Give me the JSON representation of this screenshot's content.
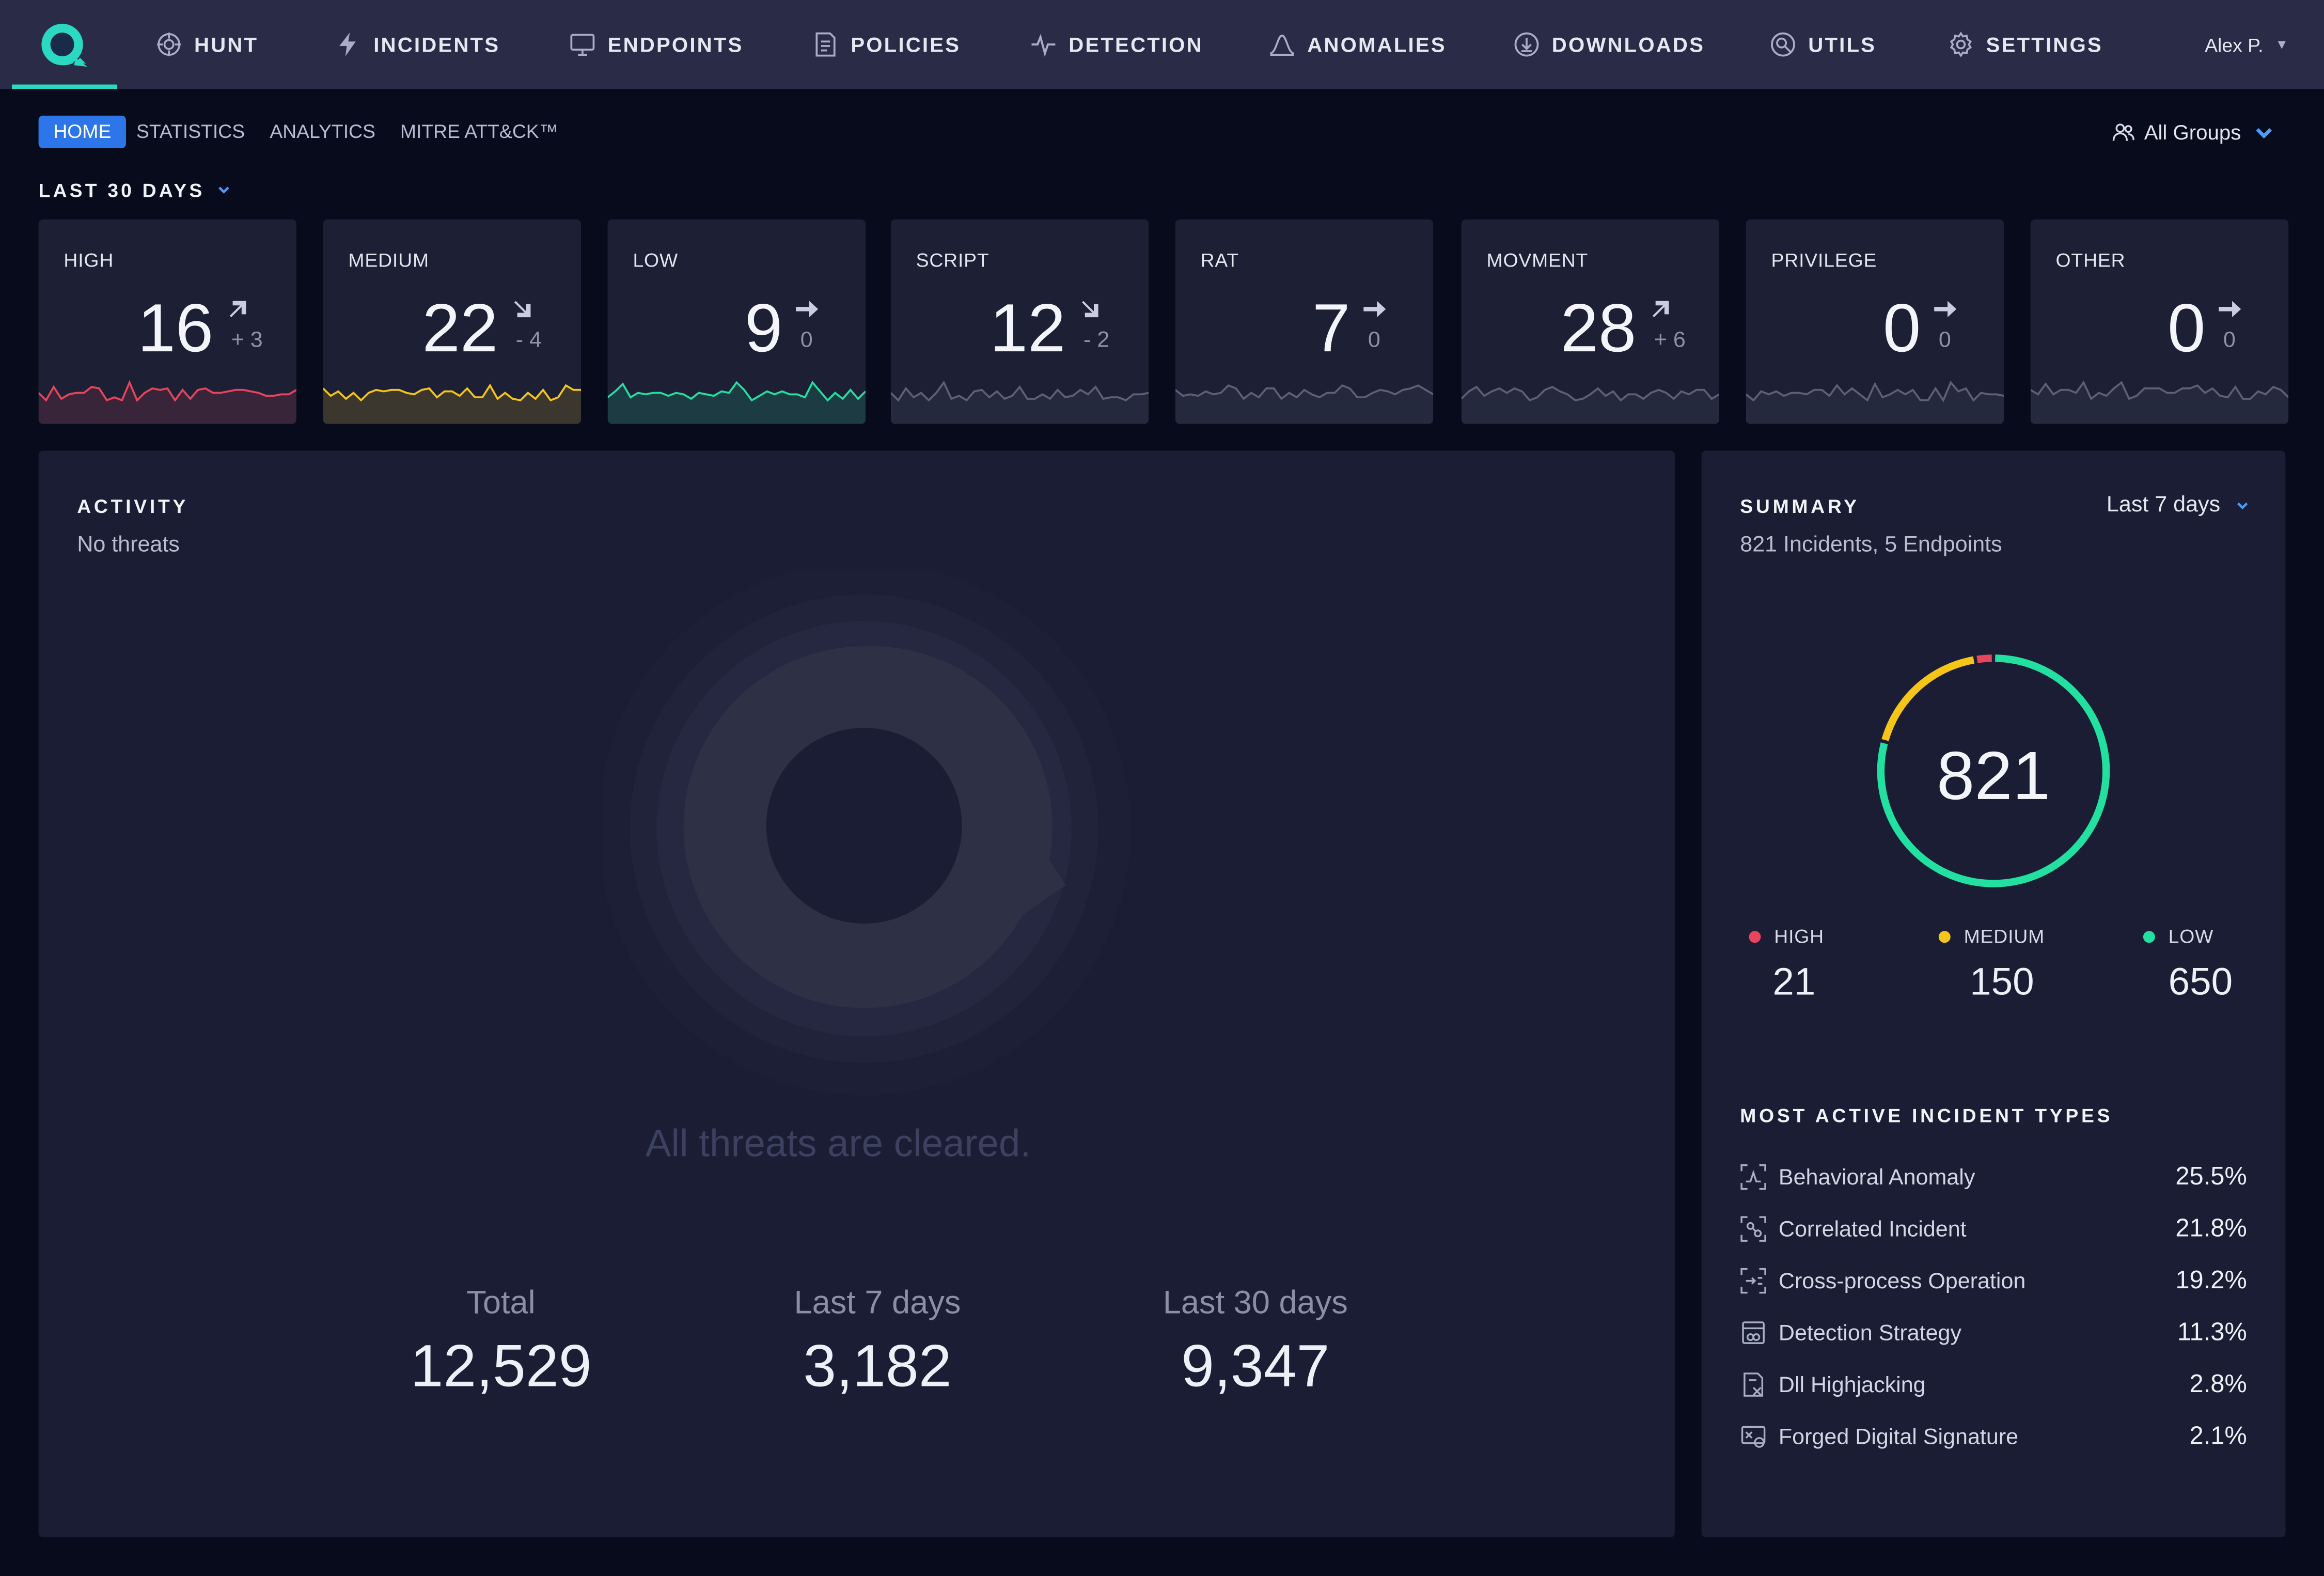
{
  "colors": {
    "accent": "#2d76e9",
    "brand": "#2bd9c2",
    "high": "#e8455c",
    "medium": "#f5c518",
    "low": "#22e0a0",
    "neutral": "#5c6178"
  },
  "nav": {
    "items": [
      {
        "label": "HUNT",
        "icon": "crosshair-globe-icon"
      },
      {
        "label": "INCIDENTS",
        "icon": "lightning-icon"
      },
      {
        "label": "ENDPOINTS",
        "icon": "monitor-icon"
      },
      {
        "label": "POLICIES",
        "icon": "document-icon"
      },
      {
        "label": "DETECTION",
        "icon": "pulse-icon"
      },
      {
        "label": "ANOMALIES",
        "icon": "bell-curve-icon"
      },
      {
        "label": "DOWNLOADS",
        "icon": "download-circle-icon"
      },
      {
        "label": "UTILS",
        "icon": "utils-icon"
      },
      {
        "label": "SETTINGS",
        "icon": "gear-icon"
      }
    ],
    "user": "Alex P."
  },
  "subtabs": {
    "items": [
      {
        "label": "HOME",
        "active": true
      },
      {
        "label": "STATISTICS",
        "active": false
      },
      {
        "label": "ANALYTICS",
        "active": false
      },
      {
        "label": "MITRE ATT&CK™",
        "active": false
      }
    ],
    "groups_label": "All Groups"
  },
  "period": {
    "label": "LAST 30 DAYS"
  },
  "cards": [
    {
      "label": "HIGH",
      "value": "16",
      "delta": "+ 3",
      "trend": "up",
      "color": "#e8455c"
    },
    {
      "label": "MEDIUM",
      "value": "22",
      "delta": "- 4",
      "trend": "down",
      "color": "#f5c518"
    },
    {
      "label": "LOW",
      "value": "9",
      "delta": "0",
      "trend": "flat",
      "color": "#22e0a0"
    },
    {
      "label": "SCRIPT",
      "value": "12",
      "delta": "- 2",
      "trend": "down",
      "color": "#5c6178"
    },
    {
      "label": "RAT",
      "value": "7",
      "delta": "0",
      "trend": "flat",
      "color": "#5c6178"
    },
    {
      "label": "MOVMENT",
      "value": "28",
      "delta": "+ 6",
      "trend": "up",
      "color": "#5c6178"
    },
    {
      "label": "PRIVILEGE",
      "value": "0",
      "delta": "0",
      "trend": "flat",
      "color": "#5c6178"
    },
    {
      "label": "OTHER",
      "value": "0",
      "delta": "0",
      "trend": "flat",
      "color": "#5c6178"
    }
  ],
  "activity": {
    "title": "ACTIVITY",
    "subtitle": "No threats",
    "cleared": "All threats are cleared.",
    "stats": [
      {
        "label": "Total",
        "value": "12,529"
      },
      {
        "label": "Last 7 days",
        "value": "3,182"
      },
      {
        "label": "Last 30 days",
        "value": "9,347"
      }
    ]
  },
  "summary": {
    "title": "SUMMARY",
    "range": "Last 7 days",
    "subtitle": "821 Incidents, 5 Endpoints",
    "total": "821",
    "severities": [
      {
        "label": "HIGH",
        "count": "21",
        "color": "#e8455c"
      },
      {
        "label": "MEDIUM",
        "count": "150",
        "color": "#f5c518"
      },
      {
        "label": "LOW",
        "count": "650",
        "color": "#22e0a0"
      }
    ],
    "types_title": "MOST ACTIVE INCIDENT TYPES",
    "types": [
      {
        "name": "Behavioral Anomaly",
        "pct": "25.5%",
        "icon": "behavioral-anomaly-icon"
      },
      {
        "name": "Correlated Incident",
        "pct": "21.8%",
        "icon": "correlated-incident-icon"
      },
      {
        "name": "Cross-process Operation",
        "pct": "19.2%",
        "icon": "cross-process-icon"
      },
      {
        "name": "Detection Strategy",
        "pct": "11.3%",
        "icon": "detection-strategy-icon"
      },
      {
        "name": "Dll Highjacking",
        "pct": "2.8%",
        "icon": "dll-hijacking-icon"
      },
      {
        "name": "Forged Digital Signature",
        "pct": "2.1%",
        "icon": "forged-signature-icon"
      }
    ]
  }
}
